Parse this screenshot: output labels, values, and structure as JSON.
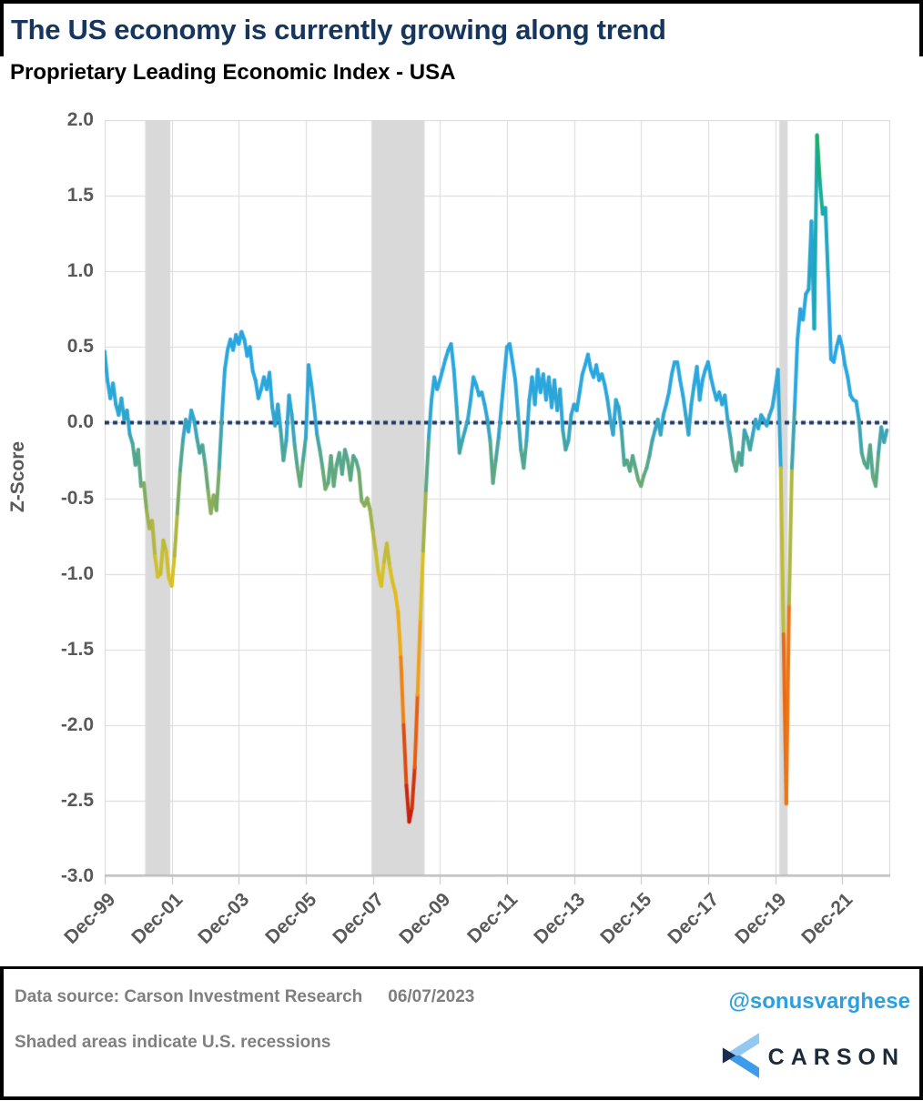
{
  "header": {
    "title": "The US economy is currently growing along trend",
    "subtitle": "Proprietary Leading Economic Index - USA"
  },
  "footer": {
    "source_label": "Data source: Carson Investment Research",
    "source_date": "06/07/2023",
    "note": "Shaded areas indicate U.S. recessions",
    "handle": "@sonusvarghese",
    "logo_text": "CARSON"
  },
  "colors": {
    "title_navy": "#17365D",
    "zero_line_navy": "#1F3864",
    "grid_gray": "#D9D9D9",
    "axis_gray": "#BFBFBF",
    "tick_text_gray": "#595959",
    "footer_text_gray": "#7F7F7F",
    "handle_blue": "#2B9FE0",
    "logo_navy": "#1C2B3A",
    "logo_blue_light": "#93C9F0",
    "logo_blue": "#3E9BEA",
    "recession_gray": "#D9D9D9"
  },
  "chart_data": {
    "type": "line",
    "title": "Proprietary Leading Economic Index - USA",
    "xlabel": "",
    "ylabel": "Z-Score",
    "ylim": [
      -3.0,
      2.0
    ],
    "ytick_step": 0.5,
    "y_tick_labels": [
      "2.0",
      "1.5",
      "1.0",
      "0.5",
      "0.0",
      "-0.5",
      "-1.0",
      "-1.5",
      "-2.0",
      "-2.5",
      "-3.0"
    ],
    "x_start": "1999-12",
    "x_tick_interval_months": 24,
    "x_tick_labels": [
      "Dec-99",
      "Dec-01",
      "Dec-03",
      "Dec-05",
      "Dec-07",
      "Dec-09",
      "Dec-11",
      "Dec-13",
      "Dec-15",
      "Dec-17",
      "Dec-19",
      "Dec-21"
    ],
    "grid": true,
    "legend": "none",
    "zero_line": {
      "value": 0.0,
      "style": "dotted",
      "color": "#1F3864"
    },
    "recessions": [
      {
        "from": "2001-03",
        "to": "2001-11"
      },
      {
        "from": "2007-12",
        "to": "2009-06"
      },
      {
        "from": "2020-02",
        "to": "2020-04"
      }
    ],
    "line_width": 4,
    "color_stops": [
      [
        -2.65,
        "#C4170B"
      ],
      [
        -2.3,
        "#D8400C"
      ],
      [
        -2.0,
        "#E86312"
      ],
      [
        -1.6,
        "#F29A16"
      ],
      [
        -1.3,
        "#ECB519"
      ],
      [
        -1.0,
        "#D8C122"
      ],
      [
        -0.8,
        "#B8B93B"
      ],
      [
        -0.55,
        "#8FAE56"
      ],
      [
        -0.35,
        "#63A87A"
      ],
      [
        -0.15,
        "#45A5A0"
      ],
      [
        0.0,
        "#30A5CE"
      ],
      [
        0.3,
        "#29A7E0"
      ],
      [
        0.9,
        "#29A3E0"
      ],
      [
        1.1,
        "#21A6C8"
      ],
      [
        1.4,
        "#18ABA4"
      ],
      [
        1.65,
        "#14AE7E"
      ],
      [
        1.9,
        "#1BB052"
      ]
    ],
    "values": [
      0.47,
      0.28,
      0.16,
      0.26,
      0.12,
      0.05,
      0.16,
      0.02,
      0.08,
      -0.08,
      -0.14,
      -0.28,
      -0.18,
      -0.42,
      -0.4,
      -0.58,
      -0.7,
      -0.65,
      -0.88,
      -1.02,
      -1.0,
      -0.78,
      -0.85,
      -1.03,
      -1.08,
      -0.88,
      -0.6,
      -0.32,
      -0.12,
      0.02,
      -0.06,
      0.08,
      0.02,
      -0.1,
      -0.2,
      -0.15,
      -0.28,
      -0.45,
      -0.6,
      -0.48,
      -0.58,
      -0.3,
      0.05,
      0.35,
      0.48,
      0.55,
      0.48,
      0.58,
      0.52,
      0.6,
      0.55,
      0.44,
      0.5,
      0.34,
      0.28,
      0.16,
      0.22,
      0.3,
      0.22,
      0.33,
      0.1,
      -0.02,
      0.12,
      -0.05,
      -0.25,
      -0.12,
      0.18,
      0.05,
      -0.15,
      -0.3,
      -0.42,
      -0.25,
      -0.1,
      0.38,
      0.25,
      0.1,
      -0.08,
      -0.18,
      -0.3,
      -0.44,
      -0.4,
      -0.22,
      -0.42,
      -0.28,
      -0.2,
      -0.34,
      -0.18,
      -0.25,
      -0.38,
      -0.22,
      -0.25,
      -0.32,
      -0.52,
      -0.55,
      -0.5,
      -0.58,
      -0.72,
      -0.85,
      -1.0,
      -1.08,
      -0.92,
      -0.8,
      -0.95,
      -1.05,
      -1.12,
      -1.25,
      -1.55,
      -2.0,
      -2.4,
      -2.64,
      -2.55,
      -2.28,
      -1.8,
      -1.3,
      -0.85,
      -0.45,
      -0.1,
      0.15,
      0.3,
      0.22,
      0.28,
      0.35,
      0.42,
      0.48,
      0.52,
      0.35,
      0.1,
      -0.2,
      -0.12,
      -0.05,
      0.02,
      0.15,
      0.3,
      0.25,
      0.18,
      0.2,
      0.12,
      0.02,
      -0.12,
      -0.4,
      -0.25,
      -0.1,
      0.1,
      0.3,
      0.5,
      0.52,
      0.4,
      0.28,
      0.05,
      -0.18,
      -0.3,
      -0.12,
      0.15,
      0.3,
      0.12,
      0.35,
      0.2,
      0.32,
      0.15,
      0.3,
      0.1,
      0.28,
      0.08,
      0.22,
      -0.05,
      -0.18,
      -0.12,
      0.05,
      0.12,
      0.08,
      0.2,
      0.32,
      0.38,
      0.45,
      0.35,
      0.3,
      0.38,
      0.28,
      0.32,
      0.25,
      0.15,
      0.02,
      -0.08,
      0.15,
      0.1,
      -0.05,
      -0.28,
      -0.25,
      -0.32,
      -0.22,
      -0.3,
      -0.38,
      -0.42,
      -0.35,
      -0.3,
      -0.22,
      -0.12,
      -0.05,
      0.02,
      -0.08,
      0.05,
      0.12,
      0.2,
      0.32,
      0.4,
      0.4,
      0.28,
      0.18,
      0.05,
      -0.08,
      0.12,
      0.25,
      0.37,
      0.15,
      0.28,
      0.35,
      0.4,
      0.3,
      0.22,
      0.15,
      0.2,
      0.12,
      0.18,
      0.02,
      -0.1,
      -0.25,
      -0.32,
      -0.2,
      -0.28,
      -0.05,
      -0.1,
      -0.18,
      -0.08,
      0.02,
      -0.04,
      0.05,
      0.02,
      -0.02,
      0.05,
      0.1,
      0.22,
      0.35,
      -0.3,
      -1.4,
      -2.52,
      -1.2,
      -0.3,
      0.1,
      0.55,
      0.75,
      0.68,
      0.85,
      0.88,
      1.33,
      0.62,
      1.9,
      1.6,
      1.38,
      1.42,
      0.95,
      0.42,
      0.4,
      0.5,
      0.57,
      0.5,
      0.38,
      0.3,
      0.18,
      0.15,
      0.14,
      0.02,
      -0.2,
      -0.27,
      -0.3,
      -0.15,
      -0.36,
      -0.42,
      -0.2,
      -0.03,
      -0.13,
      -0.05
    ]
  }
}
